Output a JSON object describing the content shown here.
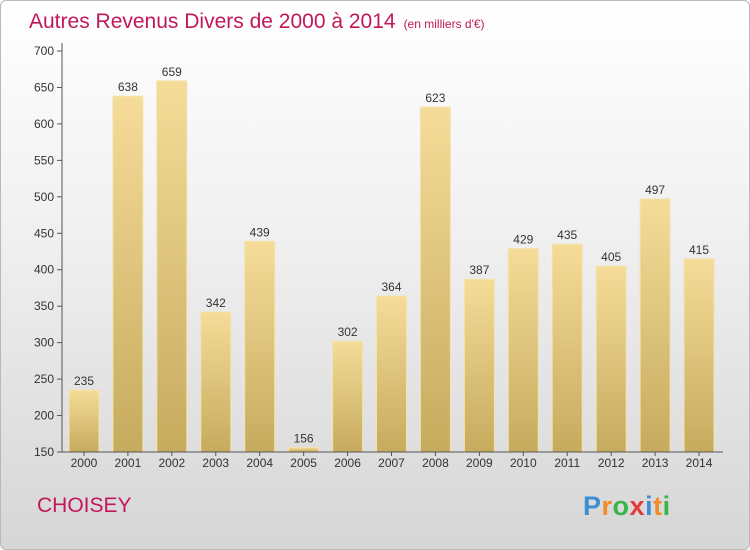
{
  "title": "Autres Revenus Divers de 2000 à 2014",
  "unit_note": "(en milliers d'€)",
  "city": "CHOISEY",
  "logo": {
    "letters": [
      "P",
      "r",
      "o",
      "x",
      "i",
      "t",
      "i"
    ],
    "colors": [
      "#3b8fd4",
      "#f28c28",
      "#3bb44a",
      "#e23b3b",
      "#3b8fd4",
      "#f28c28",
      "#3bb44a"
    ]
  },
  "chart_data": {
    "type": "bar",
    "categories": [
      "2000",
      "2001",
      "2002",
      "2003",
      "2004",
      "2005",
      "2006",
      "2007",
      "2008",
      "2009",
      "2010",
      "2011",
      "2012",
      "2013",
      "2014"
    ],
    "values": [
      235,
      638,
      659,
      342,
      439,
      156,
      302,
      364,
      623,
      387,
      429,
      435,
      405,
      497,
      415
    ],
    "data_labels": [
      "235",
      "638",
      "659",
      "342",
      "439",
      "156",
      "302",
      "364",
      "623",
      "387",
      "429",
      "435",
      "405",
      "497",
      "415"
    ],
    "ylim": [
      150,
      700
    ],
    "yticks": [
      "150",
      "200",
      "250",
      "300",
      "350",
      "400",
      "450",
      "500",
      "550",
      "600",
      "650",
      "700"
    ],
    "grid": false,
    "bar_color_top": "#f5dc98",
    "bar_color_bottom": "#c6ab5e"
  }
}
